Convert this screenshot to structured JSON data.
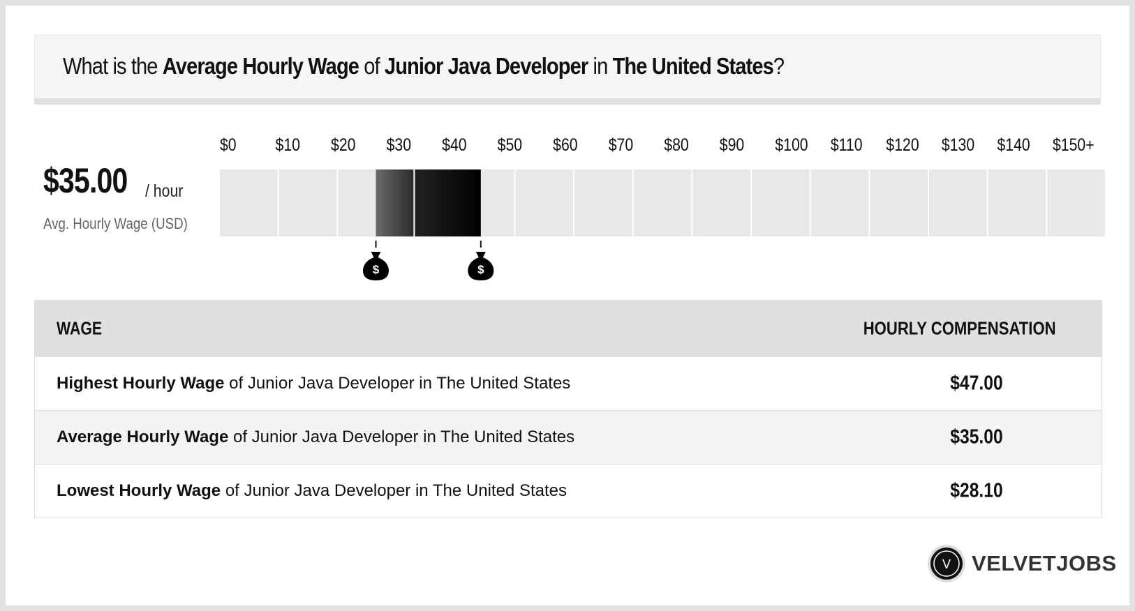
{
  "header": {
    "title": [
      "What is the",
      "Average Hourly Wage",
      "of",
      "Junior Java Developer",
      "in",
      "The United States",
      "?"
    ]
  },
  "summary": {
    "value": "$35.00",
    "unit": "/ hour",
    "label": "Avg. Hourly Wage (USD)"
  },
  "chart_data": {
    "type": "range",
    "xlim": [
      0,
      150
    ],
    "xticks": [
      {
        "value": 0,
        "label": "$0"
      },
      {
        "value": 10,
        "label": "$10"
      },
      {
        "value": 20,
        "label": "$20"
      },
      {
        "value": 30,
        "label": "$30"
      },
      {
        "value": 40,
        "label": "$40"
      },
      {
        "value": 50,
        "label": "$50"
      },
      {
        "value": 60,
        "label": "$60"
      },
      {
        "value": 70,
        "label": "$70"
      },
      {
        "value": 80,
        "label": "$80"
      },
      {
        "value": 90,
        "label": "$90"
      },
      {
        "value": 100,
        "label": "$100"
      },
      {
        "value": 110,
        "label": "$110"
      },
      {
        "value": 120,
        "label": "$120"
      },
      {
        "value": 130,
        "label": "$130"
      },
      {
        "value": 140,
        "label": "$140"
      },
      {
        "value": 150,
        "label": "$150+"
      }
    ],
    "low": 28.1,
    "average": 35,
    "high": 47
  },
  "table": {
    "headers": [
      "WAGE",
      "HOURLY COMPENSATION"
    ],
    "rows": [
      {
        "bold": "Highest Hourly Wage",
        "text": "of Junior Java Developer in The United States",
        "value": "$47.00"
      },
      {
        "bold": "Average Hourly Wage",
        "text": "of Junior Java Developer in The United States",
        "value": "$35.00"
      },
      {
        "bold": "Lowest Hourly Wage",
        "text": "of Junior Java Developer in The United States",
        "value": "$28.10"
      }
    ]
  },
  "brand": {
    "logo": "V",
    "name": "VELVETJOBS"
  }
}
